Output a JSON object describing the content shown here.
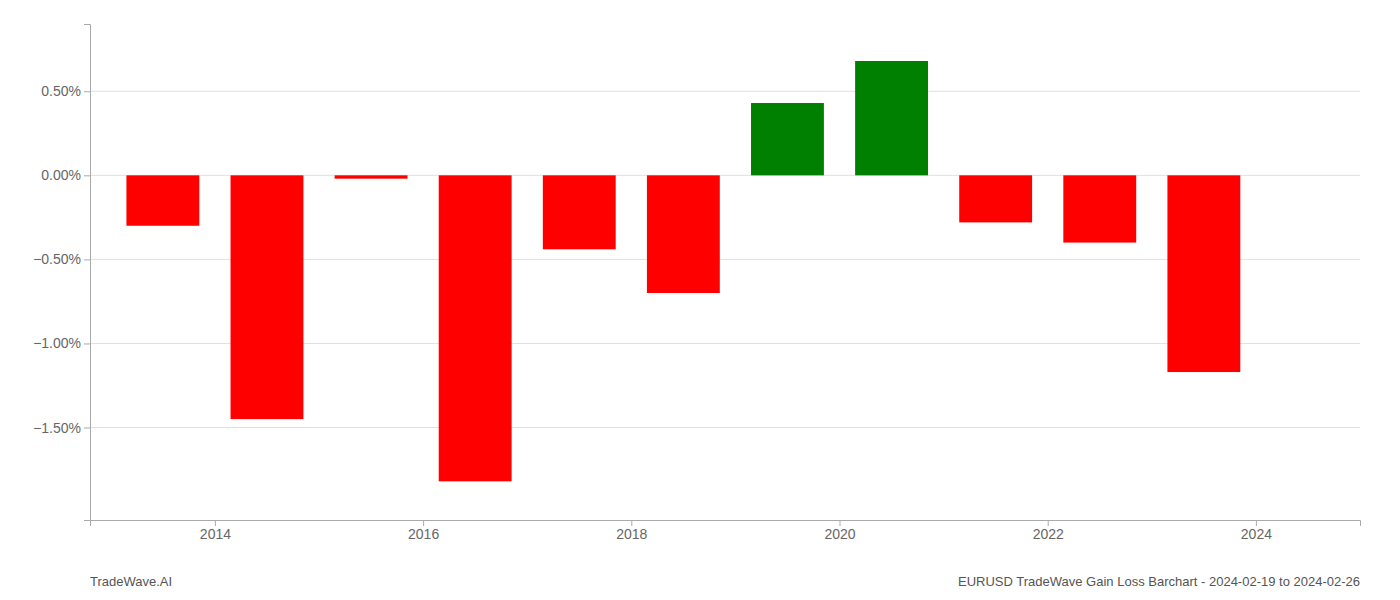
{
  "chart_data": {
    "type": "bar",
    "x": [
      2013.5,
      2014.5,
      2015.5,
      2016.5,
      2017.5,
      2018.5,
      2019.5,
      2020.5,
      2021.5,
      2022.5,
      2023.5
    ],
    "values": [
      -0.3,
      -1.45,
      -0.02,
      -1.82,
      -0.44,
      -0.7,
      0.43,
      0.68,
      -0.28,
      -0.4,
      -1.17
    ],
    "colors": [
      "#ff0000",
      "#ff0000",
      "#ff0000",
      "#ff0000",
      "#ff0000",
      "#ff0000",
      "#008000",
      "#008000",
      "#ff0000",
      "#ff0000",
      "#ff0000"
    ],
    "xlim": [
      2012.8,
      2025.0
    ],
    "xticks": [
      2014,
      2016,
      2018,
      2020,
      2022,
      2024
    ],
    "ylim": [
      -2.05,
      0.9
    ],
    "yticks": [
      {
        "value": -1.5,
        "label": "−1.50%"
      },
      {
        "value": -1.0,
        "label": "−1.00%"
      },
      {
        "value": -0.5,
        "label": "−0.50%"
      },
      {
        "value": 0.0,
        "label": "0.00%"
      },
      {
        "value": 0.5,
        "label": "0.50%"
      }
    ],
    "grid": true,
    "annotations": [
      "TradeWave.AI",
      "EURUSD TradeWave Gain Loss Barchart - 2024-02-19 to 2024-02-26"
    ]
  }
}
